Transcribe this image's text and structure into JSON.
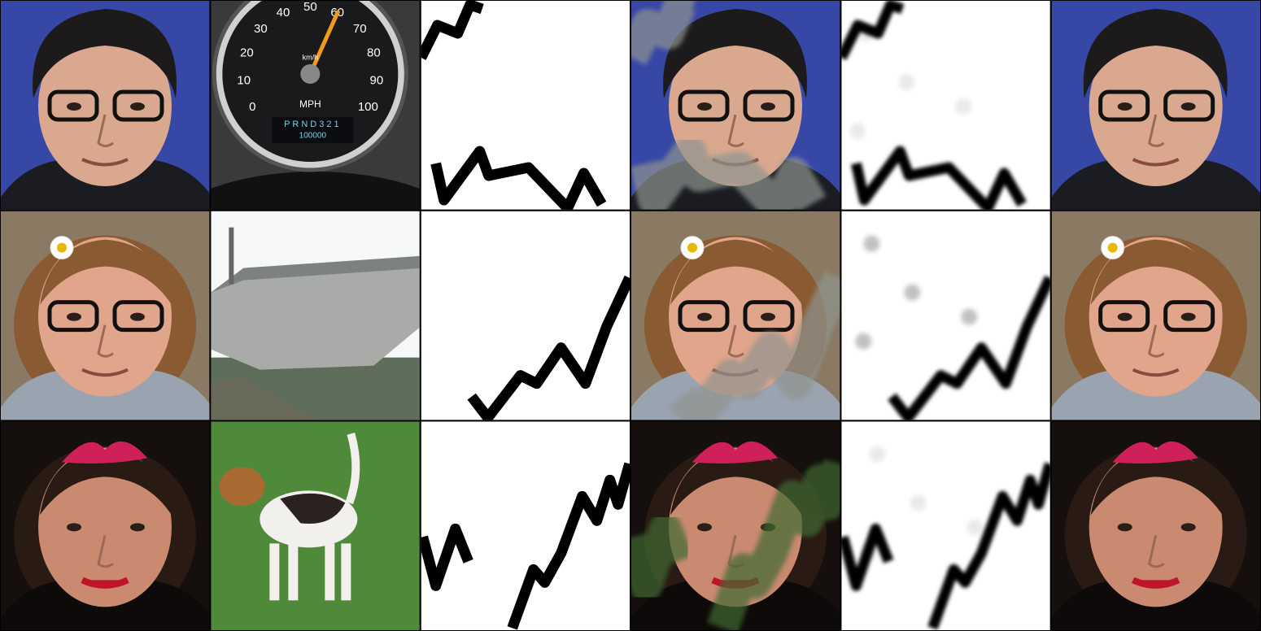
{
  "speedometer": {
    "mph_labels": [
      0,
      10,
      20,
      30,
      40,
      50,
      60,
      70,
      80,
      90,
      100
    ],
    "unit": "MPH",
    "kmh": "km/h",
    "gear": "PRND321",
    "odometer": "100000"
  }
}
